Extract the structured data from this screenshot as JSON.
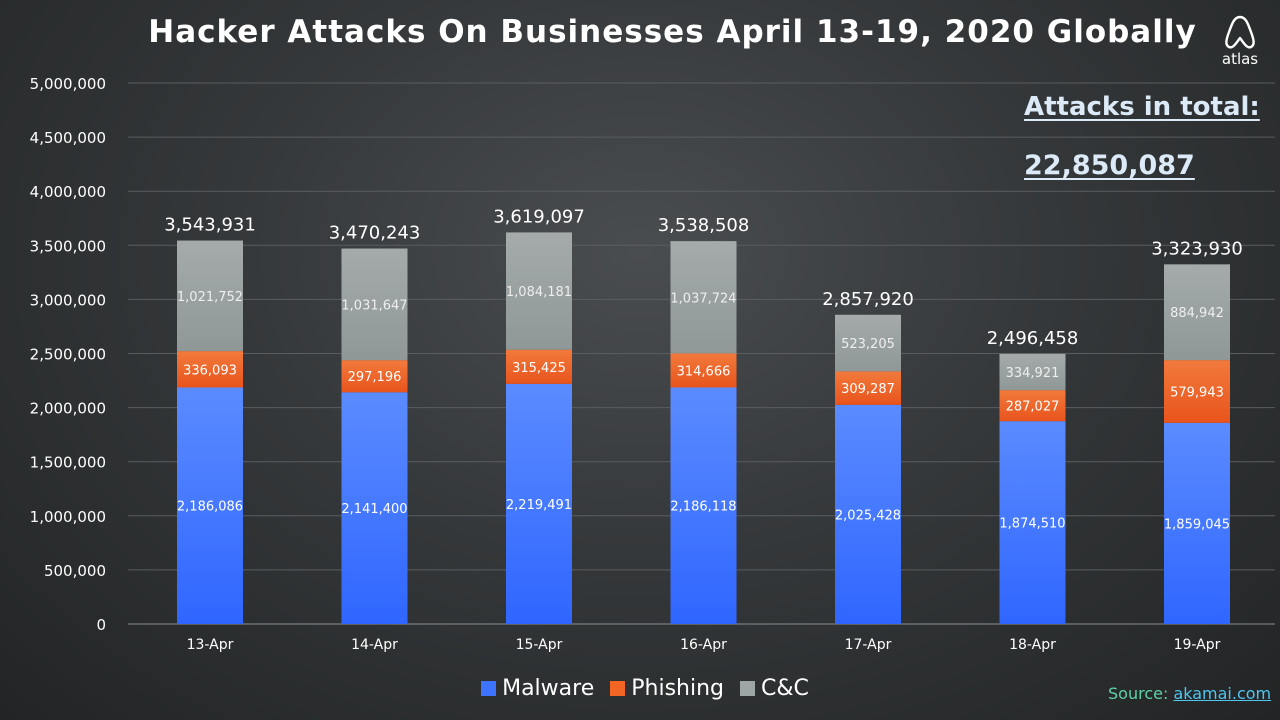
{
  "title": "Hacker Attacks On Businesses April 13-19, 2020 Globally",
  "logo": {
    "text": "atlas",
    "icon": "atlas-logo-icon"
  },
  "totals": {
    "label": "Attacks in total:",
    "value": "22,850,087"
  },
  "source": {
    "prefix": "Source: ",
    "link": "akamai.com"
  },
  "colors": {
    "malware": "#3d74ff",
    "phishing": "#f26522",
    "cc": "#9ea5a5",
    "grid": "#5a5d60",
    "text": "#ffffff",
    "tick": "#ffffff"
  },
  "chart_data": {
    "type": "bar",
    "stacked": true,
    "title": "Hacker Attacks On Businesses April 13-19, 2020 Globally",
    "categories": [
      "13-Apr",
      "14-Apr",
      "15-Apr",
      "16-Apr",
      "17-Apr",
      "18-Apr",
      "19-Apr"
    ],
    "series": [
      {
        "name": "Malware",
        "values": [
          2186086,
          2141400,
          2219491,
          2186118,
          2025428,
          1874510,
          1859045
        ],
        "labels": [
          "2,186,086",
          "2,141,400",
          "2,219,491",
          "2,186,118",
          "2,025,428",
          "1,874,510",
          "1,859,045"
        ]
      },
      {
        "name": "Phishing",
        "values": [
          336093,
          297196,
          315425,
          314666,
          309287,
          287027,
          579943
        ],
        "labels": [
          "336,093",
          "297,196",
          "315,425",
          "314,666",
          "309,287",
          "287,027",
          "579,943"
        ]
      },
      {
        "name": "C&C",
        "values": [
          1021752,
          1031647,
          1084181,
          1037724,
          523205,
          334921,
          884942
        ],
        "labels": [
          "1,021,752",
          "1,031,647",
          "1,084,181",
          "1,037,724",
          "523,205",
          "334,921",
          "884,942"
        ]
      }
    ],
    "totals": [
      3543931,
      3470243,
      3619097,
      3538508,
      2857920,
      2496458,
      3323930
    ],
    "total_labels": [
      "3,543,931",
      "3,470,243",
      "3,619,097",
      "3,538,508",
      "2,857,920",
      "2,496,458",
      "3,323,930"
    ],
    "ylim": [
      0,
      5000000
    ],
    "yticks": [
      0,
      500000,
      1000000,
      1500000,
      2000000,
      2500000,
      3000000,
      3500000,
      4000000,
      4500000,
      5000000
    ],
    "ytick_labels": [
      "0",
      "500,000",
      "1,000,000",
      "1,500,000",
      "2,000,000",
      "2,500,000",
      "3,000,000",
      "3,500,000",
      "4,000,000",
      "4,500,000",
      "5,000,000"
    ],
    "grid": true,
    "legend": "bottom-center",
    "xlabel": "",
    "ylabel": ""
  }
}
